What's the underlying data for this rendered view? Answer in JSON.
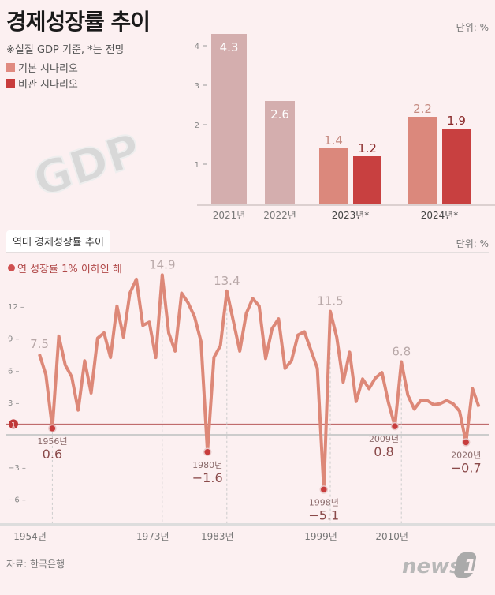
{
  "header": {
    "title": "경제성장률 추이",
    "note": "※실질 GDP 기준, *는 전망",
    "unit": "단위: %",
    "graphic_text": "GDP"
  },
  "legend": [
    {
      "label": "기본 시나리오",
      "color": "#e08a80"
    },
    {
      "label": "비관 시나리오",
      "color": "#c83c3c"
    }
  ],
  "chart_data": [
    {
      "type": "bar",
      "title": "경제성장률 추이",
      "unit": "단위: %",
      "yticks": [
        1,
        2,
        3,
        4
      ],
      "ylim": [
        0,
        4.5
      ],
      "categories": [
        "2021년",
        "2022년",
        "2023년*",
        "2024년*"
      ],
      "series": [
        {
          "name": "기본 시나리오",
          "values": [
            4.3,
            2.6,
            1.4,
            2.2
          ]
        },
        {
          "name": "비관 시나리오",
          "values": [
            null,
            null,
            1.2,
            1.9
          ]
        }
      ],
      "colors": {
        "actual": "#d4aeae",
        "base": "#db887c",
        "pess": "#c84040"
      }
    },
    {
      "type": "line",
      "title": "역대 경제성장률 추이",
      "unit": "단위: %",
      "legend": "연 성장률 1% 이하인 해",
      "threshold": 1,
      "yticks": [
        -6,
        -3,
        3,
        6,
        9,
        12
      ],
      "ylim": [
        -7.5,
        16
      ],
      "xticks": [
        "1954년",
        "1973년",
        "1983년",
        "1999년",
        "2010년"
      ],
      "x": [
        1954,
        1955,
        1956,
        1957,
        1958,
        1959,
        1960,
        1961,
        1962,
        1963,
        1964,
        1965,
        1966,
        1967,
        1968,
        1969,
        1970,
        1971,
        1972,
        1973,
        1974,
        1975,
        1976,
        1977,
        1978,
        1979,
        1980,
        1981,
        1982,
        1983,
        1984,
        1985,
        1986,
        1987,
        1988,
        1989,
        1990,
        1991,
        1992,
        1993,
        1994,
        1995,
        1996,
        1997,
        1998,
        1999,
        2000,
        2001,
        2002,
        2003,
        2004,
        2005,
        2006,
        2007,
        2008,
        2009,
        2010,
        2011,
        2012,
        2013,
        2014,
        2015,
        2016,
        2017,
        2018,
        2019,
        2020,
        2021,
        2022
      ],
      "y": [
        7.5,
        5.6,
        0.6,
        9.2,
        6.5,
        5.4,
        2.3,
        6.9,
        3.9,
        9.0,
        9.5,
        7.2,
        12.0,
        9.1,
        13.2,
        14.5,
        10.2,
        10.5,
        7.2,
        14.9,
        9.5,
        7.8,
        13.2,
        12.3,
        11.0,
        8.7,
        -1.6,
        7.2,
        8.3,
        13.4,
        10.6,
        7.8,
        11.3,
        12.7,
        12.0,
        7.1,
        9.9,
        10.8,
        6.2,
        6.9,
        9.3,
        9.6,
        7.9,
        6.2,
        -5.1,
        11.5,
        9.1,
        4.9,
        7.7,
        3.1,
        5.2,
        4.3,
        5.3,
        5.8,
        3.0,
        0.8,
        6.8,
        3.7,
        2.4,
        3.2,
        3.2,
        2.8,
        2.9,
        3.2,
        2.9,
        2.2,
        -0.7,
        4.3,
        2.6
      ],
      "peaks": [
        {
          "year": 1954,
          "label": "7.5"
        },
        {
          "year": 1973,
          "label": "14.9"
        },
        {
          "year": 1983,
          "label": "13.4"
        },
        {
          "year": 1999,
          "label": "11.5"
        },
        {
          "year": 2010,
          "label": "6.8"
        }
      ],
      "lows": [
        {
          "year": 1956,
          "year_label": "1956년",
          "label": "0.6"
        },
        {
          "year": 1980,
          "year_label": "1980년",
          "label": "-1.6"
        },
        {
          "year": 1998,
          "year_label": "1998년",
          "label": "-5.1"
        },
        {
          "year": 2009,
          "year_label": "2009년",
          "label": "0.8"
        },
        {
          "year": 2020,
          "year_label": "2020년",
          "label": "-0.7"
        }
      ],
      "line_color": "#dd8878",
      "low_color": "#c83c3c"
    }
  ],
  "section2": {
    "title": "역대 경제성장률 추이",
    "unit": "단위: %",
    "legend": "연 성장률 1% 이하인 해",
    "threshold_label": "1"
  },
  "footer": {
    "source": "자료: 한국은행",
    "logo": "news1"
  }
}
